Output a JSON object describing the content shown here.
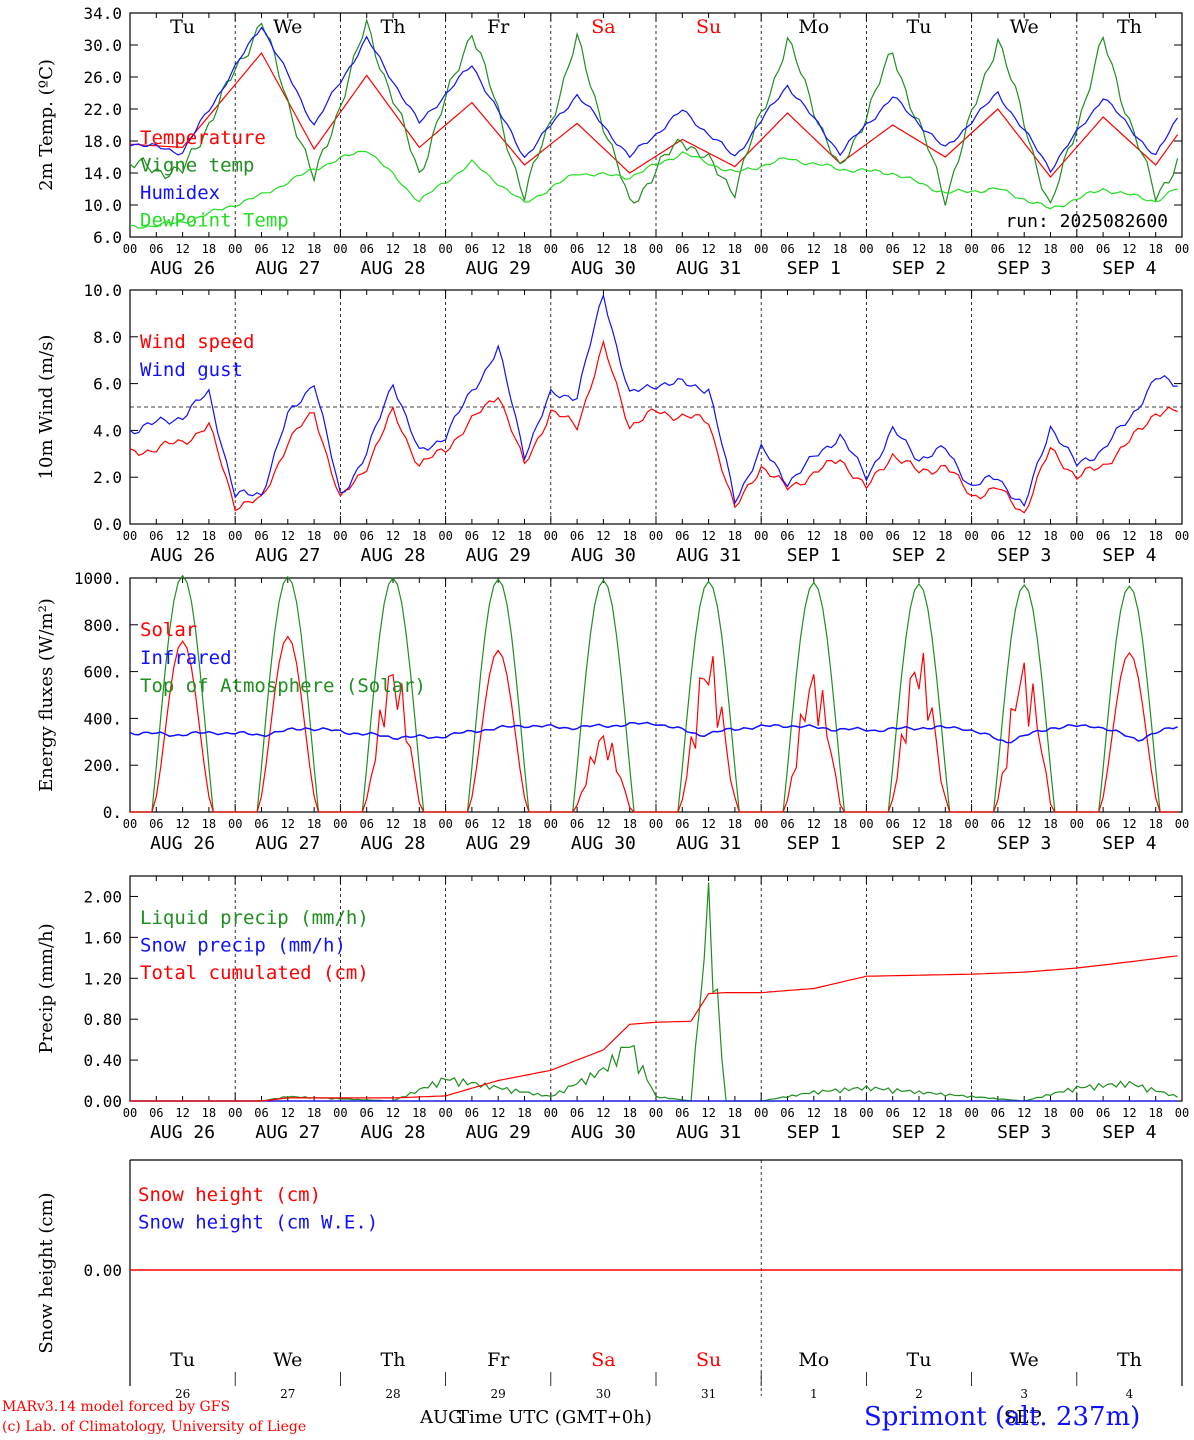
{
  "colors": {
    "red": "#ff0000",
    "green": "#1e8f1e",
    "blue": "#1010ff",
    "lime": "#22dd22",
    "black": "#000000"
  },
  "days": [
    "Tu",
    "We",
    "Th",
    "Fr",
    "Sa",
    "Su",
    "Mo",
    "Tu",
    "We",
    "Th"
  ],
  "weekend_days": [
    "Sa",
    "Su"
  ],
  "date_labels": [
    "AUG 26",
    "AUG 27",
    "AUG 28",
    "AUG 29",
    "AUG 30",
    "AUG 31",
    "SEP  1",
    "SEP  2",
    "SEP  3",
    "SEP  4"
  ],
  "hour_ticks": [
    "00",
    "06",
    "12",
    "18"
  ],
  "bottom_day_numbers": [
    "26",
    "27",
    "28",
    "29",
    "30",
    "31",
    "1",
    "2",
    "3",
    "4"
  ],
  "run_label": "run: 2025082600",
  "footer": {
    "credit_line1": "MARv3.14 model forced by GFS",
    "credit_line2": "(c) Lab. of Climatology, University of Liege",
    "month_left": "AUG",
    "month_right": "SEP",
    "axis_title": "Time UTC (GMT+0h)",
    "station": "Sprimont (alt. 237m)"
  },
  "chart_data": [
    {
      "type": "line",
      "ylabel": "2m Temp. (ºC)",
      "ylim": [
        6.0,
        34.0
      ],
      "yticks": [
        "6.0",
        "10.0",
        "14.0",
        "18.0",
        "22.0",
        "26.0",
        "30.0",
        "34.0"
      ],
      "x_hours": [
        0,
        12,
        30,
        42,
        54,
        66,
        78,
        90,
        102,
        114,
        126,
        138,
        150,
        162,
        174,
        186,
        198,
        210,
        222,
        234,
        239
      ],
      "series": [
        {
          "name": "Temperature",
          "color": "red",
          "values": [
            17.6,
            17.2,
            29.0,
            17.0,
            26.2,
            17.2,
            22.8,
            15.0,
            20.2,
            14.0,
            18.2,
            14.8,
            21.5,
            15.2,
            20.0,
            16.0,
            22.0,
            13.5,
            21.0,
            15.0,
            18.8
          ]
        },
        {
          "name": "Vigne temp",
          "color": "green",
          "values": [
            15.0,
            14.0,
            33.0,
            13.0,
            32.5,
            14.0,
            32.0,
            11.0,
            30.5,
            10.0,
            18.5,
            12.0,
            30.5,
            14.0,
            29.0,
            11.0,
            31.0,
            9.5,
            30.5,
            11.0,
            15.5
          ]
        },
        {
          "name": "Humidex",
          "color": "blue",
          "values": [
            17.8,
            16.6,
            32.5,
            20.0,
            30.8,
            20.2,
            27.5,
            16.0,
            23.8,
            16.0,
            21.8,
            16.0,
            25.0,
            16.5,
            23.5,
            17.0,
            24.0,
            14.5,
            23.5,
            16.0,
            21.0
          ]
        },
        {
          "name": "DewPoint Temp",
          "color": "lime",
          "values": [
            7.2,
            7.8,
            11.2,
            14.5,
            17.0,
            10.5,
            15.3,
            10.2,
            14.0,
            13.5,
            16.5,
            14.0,
            15.8,
            14.5,
            14.0,
            11.5,
            12.0,
            9.5,
            12.0,
            10.5,
            12.0
          ]
        }
      ]
    },
    {
      "type": "line",
      "ylabel": "10m Wind (m/s)",
      "ylim": [
        0.0,
        10.0
      ],
      "yticks": [
        "0.0",
        "2.0",
        "4.0",
        "6.0",
        "8.0",
        "10.0"
      ],
      "reference_line": 5.0,
      "x_hours": [
        0,
        12,
        18,
        24,
        30,
        36,
        42,
        48,
        54,
        60,
        66,
        72,
        84,
        90,
        96,
        102,
        108,
        114,
        120,
        126,
        132,
        138,
        144,
        150,
        162,
        168,
        174,
        180,
        186,
        192,
        198,
        204,
        210,
        216,
        222,
        228,
        234,
        239
      ],
      "series": [
        {
          "name": "Wind speed",
          "color": "red",
          "values": [
            3.0,
            3.5,
            4.2,
            0.8,
            1.0,
            3.5,
            4.8,
            1.0,
            2.5,
            4.8,
            2.5,
            3.2,
            5.6,
            2.5,
            4.8,
            4.2,
            7.6,
            4.2,
            4.8,
            4.6,
            4.4,
            0.6,
            2.5,
            1.5,
            2.8,
            1.5,
            3.0,
            2.2,
            2.5,
            1.2,
            1.5,
            0.5,
            3.2,
            2.0,
            2.5,
            3.5,
            4.8,
            4.8
          ]
        },
        {
          "name": "Wind gust",
          "color": "blue",
          "values": [
            4.0,
            4.6,
            5.6,
            1.2,
            1.3,
            4.6,
            6.1,
            1.2,
            3.0,
            6.1,
            3.0,
            3.8,
            7.5,
            3.0,
            5.5,
            5.5,
            9.8,
            5.5,
            6.0,
            6.0,
            5.8,
            1.0,
            3.2,
            1.8,
            3.8,
            2.0,
            4.0,
            2.8,
            3.2,
            1.6,
            2.0,
            0.7,
            4.2,
            2.5,
            3.2,
            4.5,
            6.2,
            6.0
          ]
        }
      ]
    },
    {
      "type": "line",
      "ylabel": "Energy fluxes (W/m²)",
      "ylim": [
        0,
        1000
      ],
      "yticks": [
        "0.",
        "200.",
        "400.",
        "600.",
        "800.",
        "1000."
      ],
      "solar_peaks": [
        730,
        750,
        650,
        690,
        350,
        700,
        620,
        710,
        660,
        680
      ],
      "toa_peaks": [
        1010,
        1005,
        1000,
        995,
        990,
        985,
        980,
        975,
        970,
        965
      ],
      "infrared_values": [
        340,
        330,
        340,
        330,
        360,
        340,
        320,
        320,
        350,
        370,
        360,
        370,
        380,
        330,
        360,
        370,
        355,
        350,
        360,
        360,
        300,
        360,
        370,
        310,
        375
      ],
      "series": [
        {
          "name": "Solar",
          "color": "red"
        },
        {
          "name": "Infrared",
          "color": "blue"
        },
        {
          "name": "Top of Atmosphere (Solar)",
          "color": "green"
        }
      ]
    },
    {
      "type": "line",
      "ylabel": "Precip (mm/h)",
      "ylim": [
        0.0,
        2.2
      ],
      "yticks": [
        "0.00",
        "0.40",
        "0.80",
        "1.20",
        "1.60",
        "2.00"
      ],
      "x_hours": [
        0,
        30,
        36,
        60,
        72,
        84,
        96,
        108,
        114,
        120,
        128,
        132,
        136,
        144,
        156,
        168,
        180,
        192,
        204,
        216,
        228,
        239
      ],
      "series": [
        {
          "name": "Liquid precip (mm/h)",
          "color": "green",
          "values": [
            0,
            0,
            0.05,
            0,
            0.25,
            0.15,
            0.05,
            0.35,
            0.65,
            0.05,
            0,
            2.2,
            0,
            0,
            0.1,
            0.15,
            0.1,
            0.05,
            0,
            0.15,
            0.2,
            0.05
          ]
        },
        {
          "name": "Snow precip (mm/h)",
          "color": "blue",
          "values": [
            0,
            0,
            0,
            0,
            0,
            0,
            0,
            0,
            0,
            0,
            0,
            0,
            0,
            0,
            0,
            0,
            0,
            0,
            0,
            0,
            0,
            0
          ]
        },
        {
          "name": "Total cumulated (cm)",
          "color": "red",
          "values": [
            0,
            0,
            0.03,
            0.03,
            0.05,
            0.2,
            0.3,
            0.5,
            0.75,
            0.77,
            0.78,
            1.05,
            1.06,
            1.06,
            1.1,
            1.22,
            1.23,
            1.24,
            1.26,
            1.3,
            1.36,
            1.42
          ]
        }
      ]
    },
    {
      "type": "line",
      "ylabel": "Snow height (cm)",
      "ytick": "0.00",
      "series": [
        {
          "name": "Snow height (cm)",
          "color": "red",
          "values": [
            0,
            0
          ]
        },
        {
          "name": "Snow height (cm W.E.)",
          "color": "blue",
          "values": [
            0,
            0
          ]
        }
      ]
    }
  ]
}
